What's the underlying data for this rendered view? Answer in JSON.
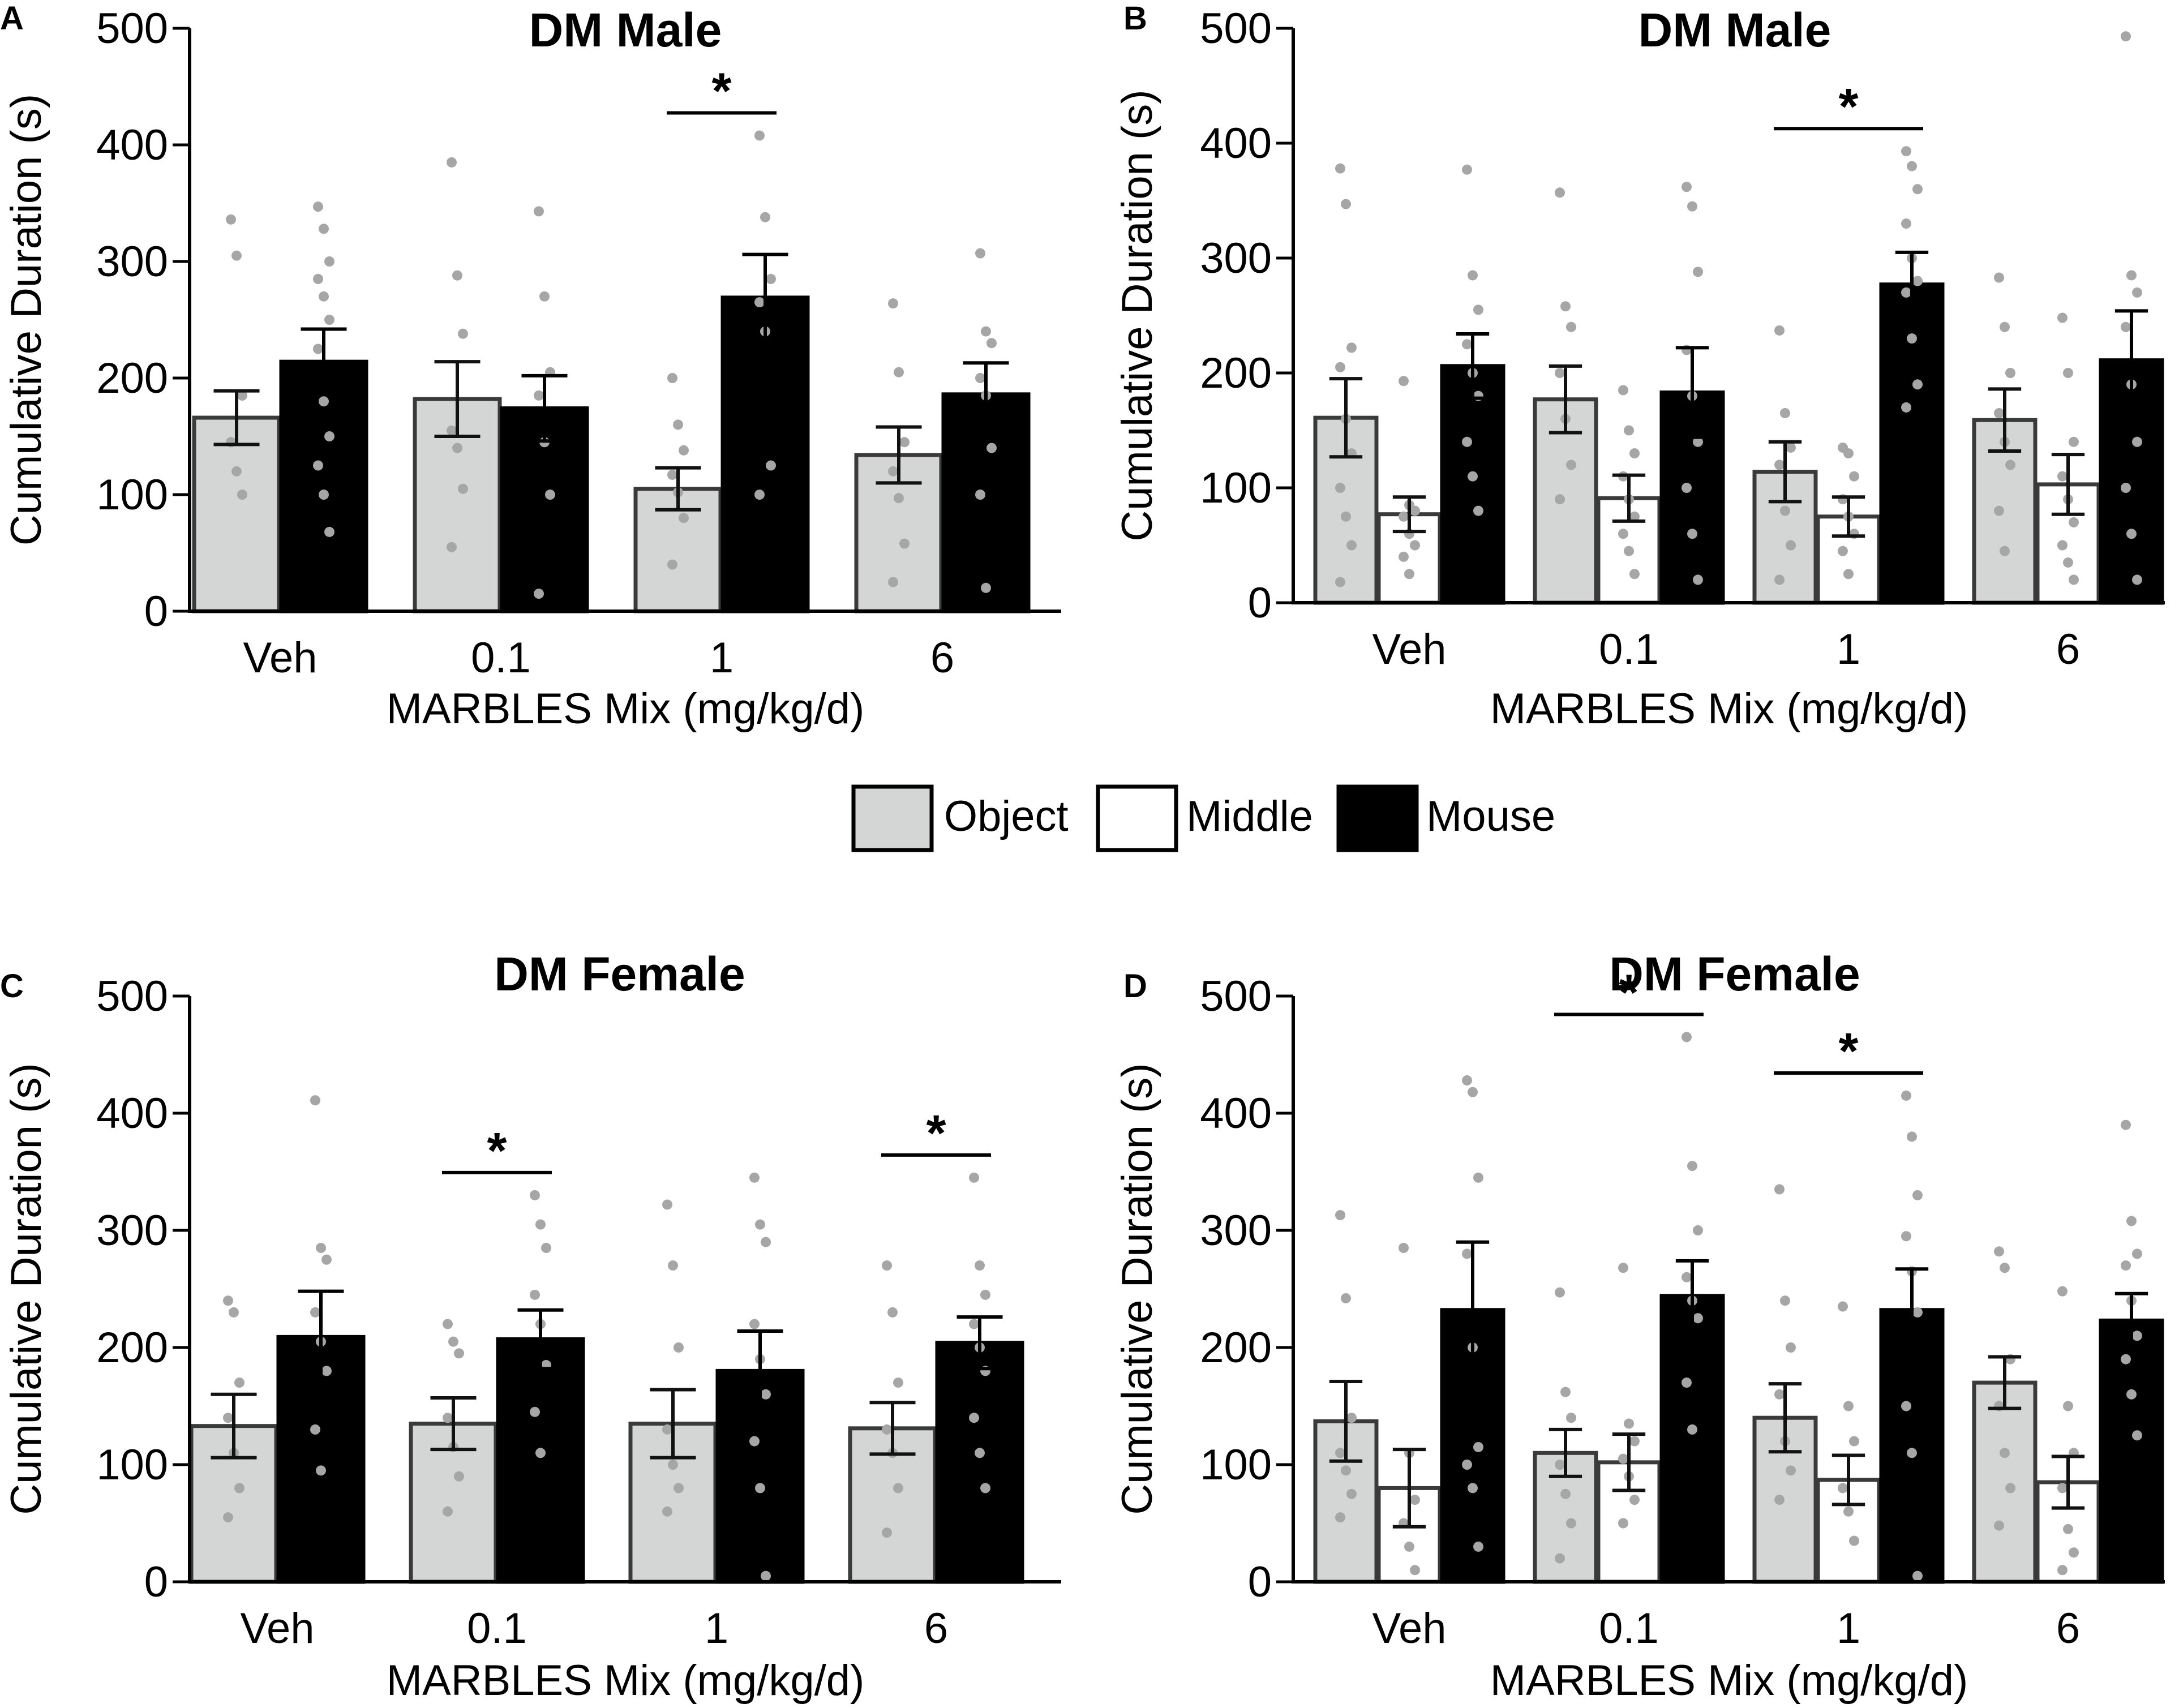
{
  "legend": {
    "items": [
      {
        "label": "Object",
        "color": "#d4d5d5"
      },
      {
        "label": "Middle",
        "color": "#ffffff"
      },
      {
        "label": "Mouse",
        "color": "#000000"
      }
    ]
  },
  "colors": {
    "dot": "#a6a6a6",
    "outline": "#3a3a3a",
    "axis": "#000000"
  },
  "chart_data": [
    {
      "panel": "A",
      "type": "bar",
      "title": "DM Male",
      "xlabel": "MARBLES Mix (mg/kg/d)",
      "ylabel": "Cumulative Duration (s)",
      "ylim": [
        0,
        500
      ],
      "yticks": [
        "0",
        "100",
        "200",
        "300",
        "400",
        "500"
      ],
      "categories": [
        "Veh",
        "0.1",
        "1",
        "6"
      ],
      "series": [
        {
          "name": "Object",
          "values": [
            166,
            182,
            105,
            134
          ],
          "sem": [
            23,
            32,
            18,
            24
          ],
          "points": [
            [
              336,
              305,
              185,
              145,
              120,
              100
            ],
            [
              385,
              288,
              238,
              155,
              140,
              105,
              55
            ],
            [
              200,
              160,
              138,
              117,
              102,
              80,
              40
            ],
            [
              264,
              205,
              145,
              120,
              97,
              58,
              25
            ]
          ]
        },
        {
          "name": "Mouse",
          "values": [
            214,
            174,
            269,
            186
          ],
          "sem": [
            28,
            28,
            37,
            27
          ],
          "points": [
            [
              347,
              328,
              300,
              285,
              270,
              250,
              225,
              180,
              150,
              125,
              100,
              68
            ],
            [
              343,
              270,
              205,
              185,
              145,
              100,
              15
            ],
            [
              408,
              338,
              285,
              265,
              240,
              125,
              100
            ],
            [
              307,
              240,
              230,
              200,
              185,
              140,
              100,
              20
            ]
          ]
        }
      ],
      "significance": [
        {
          "category": "1",
          "label": "*"
        }
      ]
    },
    {
      "panel": "B",
      "type": "bar",
      "title": "DM Male",
      "xlabel": "MARBLES Mix (mg/kg/d)",
      "ylabel": "Cumulative Duration (s)",
      "ylim": [
        0,
        500
      ],
      "yticks": [
        "0",
        "100",
        "200",
        "300",
        "400",
        "500"
      ],
      "categories": [
        "Veh",
        "0.1",
        "1",
        "6"
      ],
      "series": [
        {
          "name": "Object",
          "values": [
            161,
            177,
            114,
            159
          ],
          "sem": [
            34,
            29,
            26,
            27
          ],
          "points": [
            [
              378,
              347,
              222,
              205,
              160,
              130,
              100,
              75,
              50,
              18
            ],
            [
              357,
              258,
              240,
              200,
              160,
              120,
              90
            ],
            [
              237,
              165,
              135,
              120,
              80,
              50,
              20
            ],
            [
              283,
              240,
              200,
              165,
              140,
              120,
              80,
              45
            ]
          ]
        },
        {
          "name": "Middle",
          "values": [
            77,
            91,
            75,
            103
          ],
          "sem": [
            15,
            20,
            17,
            26
          ],
          "points": [
            [
              193,
              85,
              80,
              75,
              60,
              50,
              40,
              25
            ],
            [
              185,
              150,
              130,
              110,
              90,
              75,
              60,
              45,
              25
            ],
            [
              135,
              130,
              110,
              90,
              75,
              60,
              45,
              25
            ],
            [
              248,
              200,
              140,
              110,
              90,
              70,
              50,
              35,
              20
            ]
          ]
        },
        {
          "name": "Mouse",
          "values": [
            206,
            183,
            277,
            211
          ],
          "sem": [
            28,
            39,
            28,
            43
          ],
          "points": [
            [
              377,
              285,
              255,
              225,
              200,
              180,
              140,
              110,
              80
            ],
            [
              362,
              345,
              288,
              220,
              180,
              140,
              100,
              60,
              20
            ],
            [
              393,
              380,
              360,
              330,
              300,
              280,
              270,
              230,
              190,
              170
            ],
            [
              493,
              285,
              270,
              240,
              190,
              140,
              100,
              60,
              20
            ]
          ]
        }
      ],
      "significance": [
        {
          "category": "1",
          "label": "*"
        }
      ]
    },
    {
      "panel": "C",
      "type": "bar",
      "title": "DM Female",
      "xlabel": "MARBLES Mix (mg/kg/d)",
      "ylabel": "Cumulative Duration (s)",
      "ylim": [
        0,
        500
      ],
      "yticks": [
        "0",
        "100",
        "200",
        "300",
        "400",
        "500"
      ],
      "categories": [
        "Veh",
        "0.1",
        "1",
        "6"
      ],
      "series": [
        {
          "name": "Object",
          "values": [
            133,
            135,
            135,
            131
          ],
          "sem": [
            27,
            22,
            29,
            22
          ],
          "points": [
            [
              240,
              230,
              170,
              140,
              110,
              80,
              55
            ],
            [
              220,
              205,
              195,
              140,
              115,
              90,
              60
            ],
            [
              322,
              270,
              200,
              130,
              100,
              80,
              60
            ],
            [
              270,
              230,
              170,
              130,
              110,
              80,
              42
            ]
          ]
        },
        {
          "name": "Mouse",
          "values": [
            209,
            207,
            180,
            204
          ],
          "sem": [
            39,
            25,
            34,
            22
          ],
          "points": [
            [
              411,
              285,
              275,
              230,
              205,
              180,
              130,
              95
            ],
            [
              330,
              305,
              285,
              245,
              220,
              185,
              145,
              110
            ],
            [
              345,
              305,
              290,
              220,
              190,
              160,
              120,
              80,
              5
            ],
            [
              345,
              270,
              245,
              220,
              200,
              180,
              140,
              110,
              80
            ]
          ]
        }
      ],
      "significance": [
        {
          "category": "0.1",
          "label": "*"
        },
        {
          "category": "6",
          "label": "*"
        }
      ]
    },
    {
      "panel": "D",
      "type": "bar",
      "title": "DM Female",
      "xlabel": "MARBLES Mix (mg/kg/d)",
      "ylabel": "Cumulative Duration (s)",
      "ylim": [
        0,
        500
      ],
      "yticks": [
        "0",
        "100",
        "200",
        "300",
        "400",
        "500"
      ],
      "categories": [
        "Veh",
        "0.1",
        "1",
        "6"
      ],
      "series": [
        {
          "name": "Object",
          "values": [
            137,
            110,
            140,
            170
          ],
          "sem": [
            34,
            20,
            29,
            22
          ],
          "points": [
            [
              313,
              242,
              140,
              110,
              95,
              75,
              55
            ],
            [
              247,
              162,
              140,
              100,
              75,
              50,
              20
            ],
            [
              335,
              240,
              200,
              160,
              120,
              95,
              70
            ],
            [
              282,
              268,
              190,
              150,
              110,
              80,
              48
            ]
          ]
        },
        {
          "name": "Middle",
          "values": [
            80,
            102,
            87,
            85
          ],
          "sem": [
            33,
            24,
            21,
            22
          ],
          "points": [
            [
              285,
              110,
              70,
              50,
              30,
              10
            ],
            [
              268,
              135,
              120,
              105,
              90,
              70,
              50
            ],
            [
              235,
              150,
              120,
              80,
              60,
              35
            ],
            [
              248,
              150,
              110,
              80,
              45,
              25,
              10
            ]
          ]
        },
        {
          "name": "Mouse",
          "values": [
            232,
            244,
            232,
            223
          ],
          "sem": [
            58,
            30,
            35,
            23
          ],
          "points": [
            [
              428,
              418,
              345,
              280,
              200,
              115,
              100,
              80,
              30
            ],
            [
              465,
              355,
              300,
              260,
              240,
              225,
              170,
              130
            ],
            [
              415,
              380,
              330,
              295,
              265,
              230,
              150,
              110,
              5
            ],
            [
              390,
              308,
              280,
              270,
              240,
              210,
              190,
              160,
              125
            ]
          ]
        }
      ],
      "significance": [
        {
          "category": "0.1",
          "label": "*"
        },
        {
          "category": "1",
          "label": "*"
        }
      ]
    }
  ]
}
